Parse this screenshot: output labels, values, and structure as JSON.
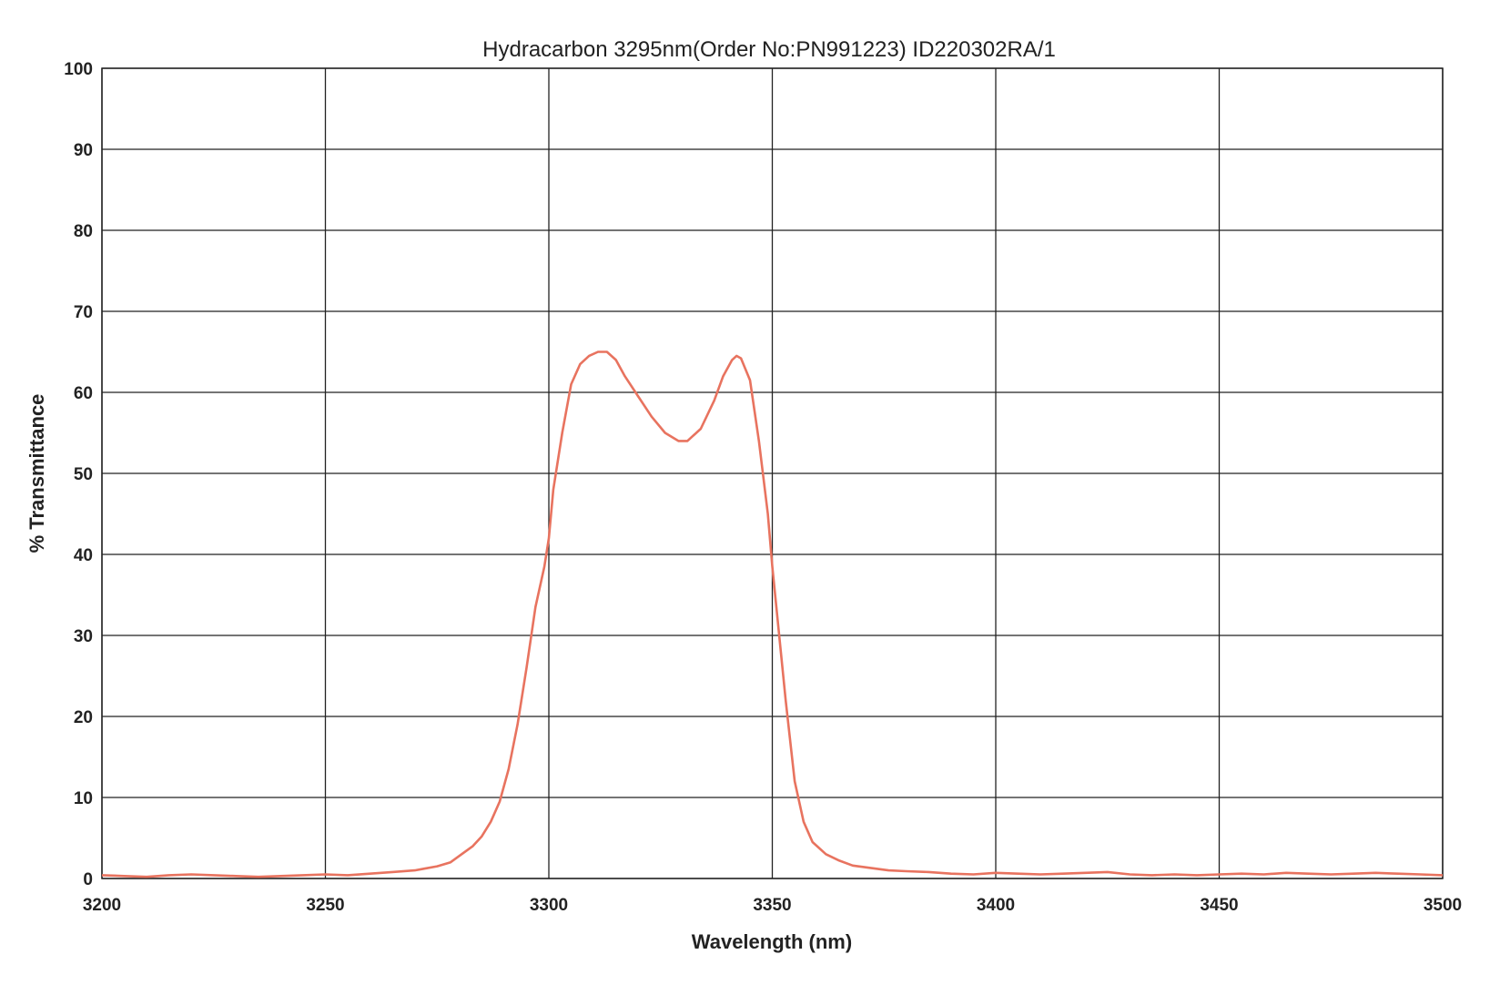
{
  "chart_data": {
    "type": "line",
    "title": "Hydracarbon 3295nm(Order No:PN991223) ID220302RA/1",
    "xlabel": "Wavelength (nm)",
    "ylabel": "% Transmittance",
    "xlim": [
      3200,
      3500
    ],
    "ylim": [
      0,
      100
    ],
    "x_ticks": [
      "3200",
      "3250",
      "3300",
      "3350",
      "3400",
      "3450",
      "3500"
    ],
    "y_ticks": [
      "0",
      "10",
      "20",
      "30",
      "40",
      "50",
      "60",
      "70",
      "80",
      "90",
      "100"
    ],
    "grid": true,
    "legend": "none",
    "series": [
      {
        "color": "#e8735f",
        "x": [
          3200,
          3205,
          3210,
          3215,
          3220,
          3225,
          3230,
          3235,
          3240,
          3245,
          3250,
          3255,
          3260,
          3265,
          3270,
          3272,
          3275,
          3278,
          3280,
          3283,
          3285,
          3287,
          3289,
          3291,
          3293,
          3295,
          3297,
          3299,
          3300,
          3301,
          3303,
          3305,
          3307,
          3309,
          3311,
          3313,
          3315,
          3317,
          3320,
          3323,
          3326,
          3329,
          3331,
          3334,
          3337,
          3339,
          3341,
          3342,
          3343,
          3345,
          3347,
          3349,
          3350,
          3351,
          3353,
          3355,
          3357,
          3359,
          3362,
          3365,
          3368,
          3372,
          3376,
          3380,
          3385,
          3390,
          3395,
          3400,
          3405,
          3410,
          3415,
          3420,
          3425,
          3430,
          3435,
          3440,
          3445,
          3450,
          3455,
          3460,
          3465,
          3470,
          3475,
          3480,
          3485,
          3490,
          3495,
          3500
        ],
        "y": [
          0.4,
          0.3,
          0.2,
          0.4,
          0.5,
          0.4,
          0.3,
          0.2,
          0.3,
          0.4,
          0.5,
          0.4,
          0.6,
          0.8,
          1.0,
          1.2,
          1.5,
          2.0,
          2.8,
          4.0,
          5.2,
          7.0,
          9.5,
          13.5,
          19.0,
          26.0,
          33.5,
          38.5,
          42.0,
          48.0,
          55.0,
          61.0,
          63.5,
          64.5,
          65.0,
          65.0,
          64.0,
          62.0,
          59.5,
          57.0,
          55.0,
          54.0,
          54.0,
          55.5,
          59.0,
          62.0,
          64.0,
          64.5,
          64.2,
          61.5,
          54.0,
          45.0,
          38.5,
          33.0,
          22.0,
          12.0,
          7.0,
          4.5,
          3.0,
          2.2,
          1.6,
          1.3,
          1.0,
          0.9,
          0.8,
          0.6,
          0.5,
          0.7,
          0.6,
          0.5,
          0.6,
          0.7,
          0.8,
          0.5,
          0.4,
          0.5,
          0.4,
          0.5,
          0.6,
          0.5,
          0.7,
          0.6,
          0.5,
          0.6,
          0.7,
          0.6,
          0.5,
          0.4
        ]
      }
    ]
  }
}
